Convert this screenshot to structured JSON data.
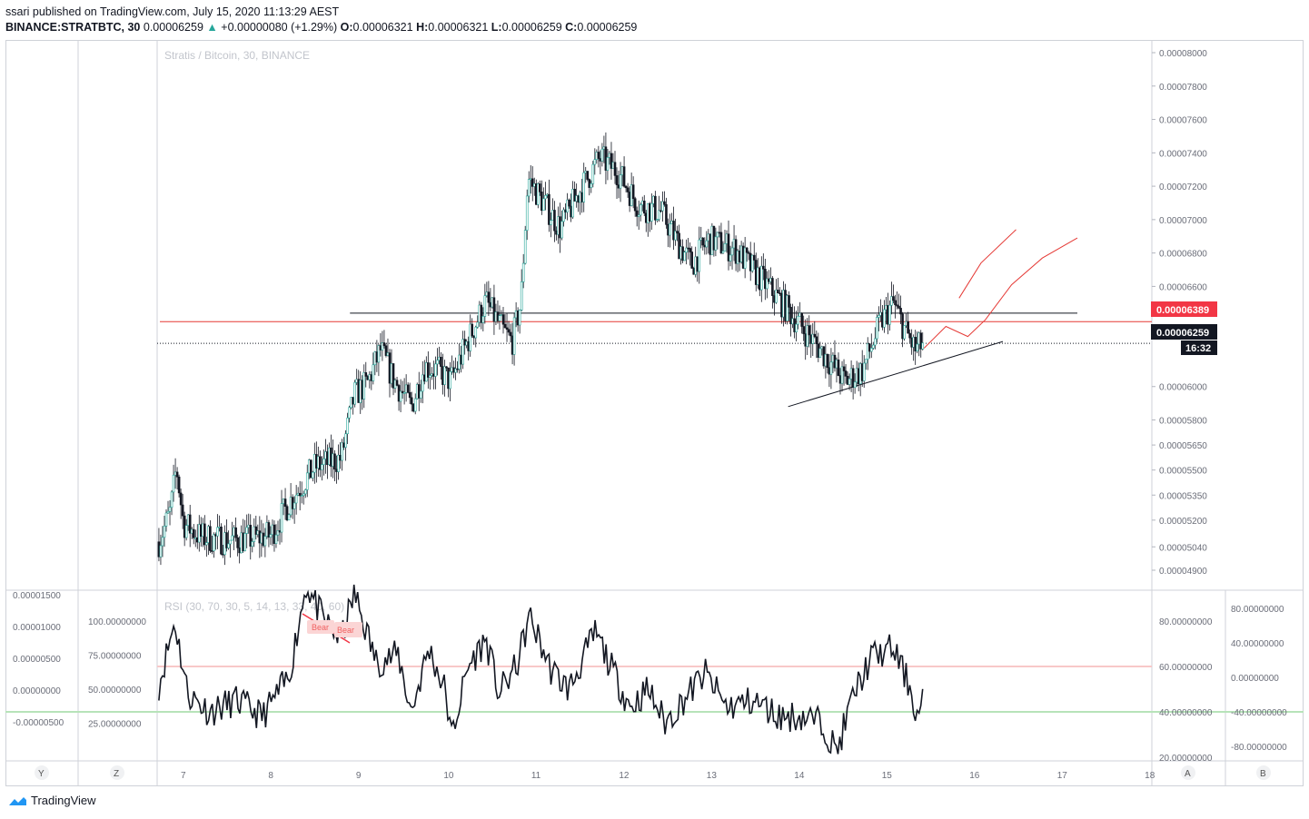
{
  "header": {
    "line1": "ssari published on TradingView.com, July 15, 2020 11:13:29 AEST",
    "symbol": "BINANCE:STRATBTC, 30",
    "last": "0.00006259",
    "change_arrow": "▲",
    "change": "+0.00000080 (+1.29%)",
    "o_label": "O:",
    "o_val": "0.00006321",
    "h_label": "H:",
    "h_val": "0.00006321",
    "l_label": "L:",
    "l_val": "0.00006259",
    "c_label": "C:",
    "c_val": "0.00006259"
  },
  "watermark": "Stratis / Bitcoin, 30, BINANCE",
  "rsi_title": "RSI (30, 70, 30, 5, 14, 13, 33, 40, 60)",
  "badge_bear_a": "Bear",
  "badge_bear_b": "Bear",
  "price_badge_red": "0.00006389",
  "price_badge_last": "0.00006259",
  "countdown": "16:32",
  "axis_buttons": {
    "y": "Y",
    "z": "Z",
    "a": "A",
    "b": "B"
  },
  "footer": {
    "brand": "TradingView"
  },
  "colors": {
    "up": "#26a69a",
    "down": "#ef5350",
    "red_line": "#e53935",
    "badge_red": "#f23645",
    "rsi_upper": "#f8c8c8",
    "rsi_lower": "#b7e3b9"
  },
  "chart_data": {
    "type": "candlestick",
    "title": "Stratis / Bitcoin, 30, BINANCE",
    "x_ticks": [
      "7",
      "8",
      "9",
      "10",
      "11",
      "12",
      "13",
      "14",
      "15",
      "16",
      "17",
      "18"
    ],
    "x_tick_values": [
      7,
      8,
      9,
      10,
      11,
      12,
      13,
      14,
      15,
      16,
      17,
      18
    ],
    "xlim": [
      6.7,
      18.05
    ],
    "y_ticks": [
      "0.00008000",
      "0.00007800",
      "0.00007600",
      "0.00007400",
      "0.00007200",
      "0.00007000",
      "0.00006800",
      "0.00006600",
      "0.00006000",
      "0.00005800",
      "0.00005650",
      "0.00005500",
      "0.00005350",
      "0.00005200",
      "0.00005040",
      "0.00004900"
    ],
    "y_tick_values": [
      8e-05,
      7.8e-05,
      7.6e-05,
      7.4e-05,
      7.2e-05,
      7e-05,
      6.8e-05,
      6.6e-05,
      6e-05,
      5.8e-05,
      5.65e-05,
      5.5e-05,
      5.35e-05,
      5.2e-05,
      5.04e-05,
      4.9e-05
    ],
    "price_path": [
      [
        6.72,
        5.07e-05
      ],
      [
        6.85,
        5.25e-05
      ],
      [
        6.92,
        5.52e-05
      ],
      [
        7.0,
        5.18e-05
      ],
      [
        7.2,
        5.1e-05
      ],
      [
        7.5,
        5.08e-05
      ],
      [
        7.8,
        5.09e-05
      ],
      [
        8.0,
        5.11e-05
      ],
      [
        8.2,
        5.3e-05
      ],
      [
        8.5,
        5.52e-05
      ],
      [
        8.8,
        5.57e-05
      ],
      [
        8.95,
        5.95e-05
      ],
      [
        9.1,
        6.02e-05
      ],
      [
        9.25,
        6.22e-05
      ],
      [
        9.4,
        6.04e-05
      ],
      [
        9.6,
        5.88e-05
      ],
      [
        9.75,
        6.12e-05
      ],
      [
        9.9,
        6.1e-05
      ],
      [
        10.05,
        6.03e-05
      ],
      [
        10.25,
        6.28e-05
      ],
      [
        10.45,
        6.51e-05
      ],
      [
        10.65,
        6.33e-05
      ],
      [
        10.75,
        6.27e-05
      ],
      [
        10.85,
        6.5e-05
      ],
      [
        10.93,
        7.25e-05
      ],
      [
        11.05,
        7.15e-05
      ],
      [
        11.3,
        6.95e-05
      ],
      [
        11.5,
        7.15e-05
      ],
      [
        11.75,
        7.37e-05
      ],
      [
        11.95,
        7.29e-05
      ],
      [
        12.2,
        7.08e-05
      ],
      [
        12.45,
        7.05e-05
      ],
      [
        12.6,
        6.9e-05
      ],
      [
        12.8,
        6.73e-05
      ],
      [
        13.0,
        6.88e-05
      ],
      [
        13.3,
        6.82e-05
      ],
      [
        13.5,
        6.7e-05
      ],
      [
        13.8,
        6.52e-05
      ],
      [
        14.05,
        6.36e-05
      ],
      [
        14.3,
        6.2e-05
      ],
      [
        14.55,
        6.03e-05
      ],
      [
        14.75,
        6.1e-05
      ],
      [
        14.95,
        6.38e-05
      ],
      [
        15.1,
        6.5e-05
      ],
      [
        15.25,
        6.32e-05
      ],
      [
        15.35,
        6.22e-05
      ],
      [
        15.45,
        6.26e-05
      ]
    ],
    "forecast_path": [
      [
        15.85,
        6.53e-05
      ],
      [
        16.1,
        6.74e-05
      ],
      [
        16.5,
        6.94e-05
      ]
    ],
    "forecast_path2": [
      [
        15.45,
        6.23e-05
      ],
      [
        15.7,
        6.36e-05
      ],
      [
        15.95,
        6.3e-05
      ],
      [
        16.15,
        6.4e-05
      ],
      [
        16.45,
        6.61e-05
      ],
      [
        16.8,
        6.77e-05
      ],
      [
        17.2,
        6.89e-05
      ]
    ],
    "horizontal_levels": [
      {
        "label": "0.00006389",
        "price": 6.389e-05,
        "style": "solid-red"
      },
      {
        "label": "0.00006259",
        "price": 6.259e-05,
        "style": "dotted-black"
      }
    ],
    "resistance_line": {
      "x": [
        8.9,
        17.2
      ],
      "price": [
        6.44e-05,
        6.44e-05
      ]
    },
    "support_line": {
      "x": [
        13.9,
        16.35
      ],
      "price": [
        5.88e-05,
        6.27e-05
      ]
    },
    "rsi": {
      "ylim": [
        0,
        100
      ],
      "left_ticks": [
        "100.00000000",
        "75.00000000",
        "50.00000000",
        "25.00000000"
      ],
      "left_tick_values": [
        100,
        75,
        50,
        25
      ],
      "outer_left_ticks": [
        "0.00001500",
        "0.00001000",
        "0.00000500",
        "0.00000000",
        "-0.00000500"
      ],
      "right_ticks": [
        "80.00000000",
        "60.00000000",
        "40.00000000",
        "20.00000000"
      ],
      "right_tick_values": [
        80,
        60,
        40,
        20
      ],
      "outer_right_ticks": [
        "80.00000000",
        "40.00000000",
        "0.00000000",
        "-40.00000000",
        "-80.00000000"
      ],
      "upper_level": 60,
      "lower_level": 40,
      "series_path": [
        [
          6.72,
          52
        ],
        [
          6.9,
          80
        ],
        [
          7.05,
          48
        ],
        [
          7.3,
          40
        ],
        [
          7.6,
          45
        ],
        [
          7.9,
          38
        ],
        [
          8.2,
          55
        ],
        [
          8.4,
          96
        ],
        [
          8.6,
          80
        ],
        [
          8.8,
          72
        ],
        [
          8.95,
          92
        ],
        [
          9.2,
          62
        ],
        [
          9.45,
          65
        ],
        [
          9.6,
          40
        ],
        [
          9.8,
          68
        ],
        [
          10.0,
          48
        ],
        [
          10.05,
          28
        ],
        [
          10.25,
          60
        ],
        [
          10.45,
          72
        ],
        [
          10.6,
          48
        ],
        [
          10.8,
          60
        ],
        [
          10.95,
          82
        ],
        [
          11.2,
          58
        ],
        [
          11.4,
          50
        ],
        [
          11.7,
          75
        ],
        [
          11.9,
          58
        ],
        [
          12.1,
          42
        ],
        [
          12.3,
          50
        ],
        [
          12.5,
          35
        ],
        [
          12.7,
          45
        ],
        [
          12.95,
          57
        ],
        [
          13.2,
          42
        ],
        [
          13.5,
          45
        ],
        [
          13.8,
          38
        ],
        [
          14.05,
          38
        ],
        [
          14.3,
          35
        ],
        [
          14.45,
          22
        ],
        [
          14.65,
          48
        ],
        [
          14.85,
          64
        ],
        [
          15.1,
          68
        ],
        [
          15.3,
          50
        ],
        [
          15.38,
          36
        ],
        [
          15.45,
          52
        ]
      ]
    }
  }
}
